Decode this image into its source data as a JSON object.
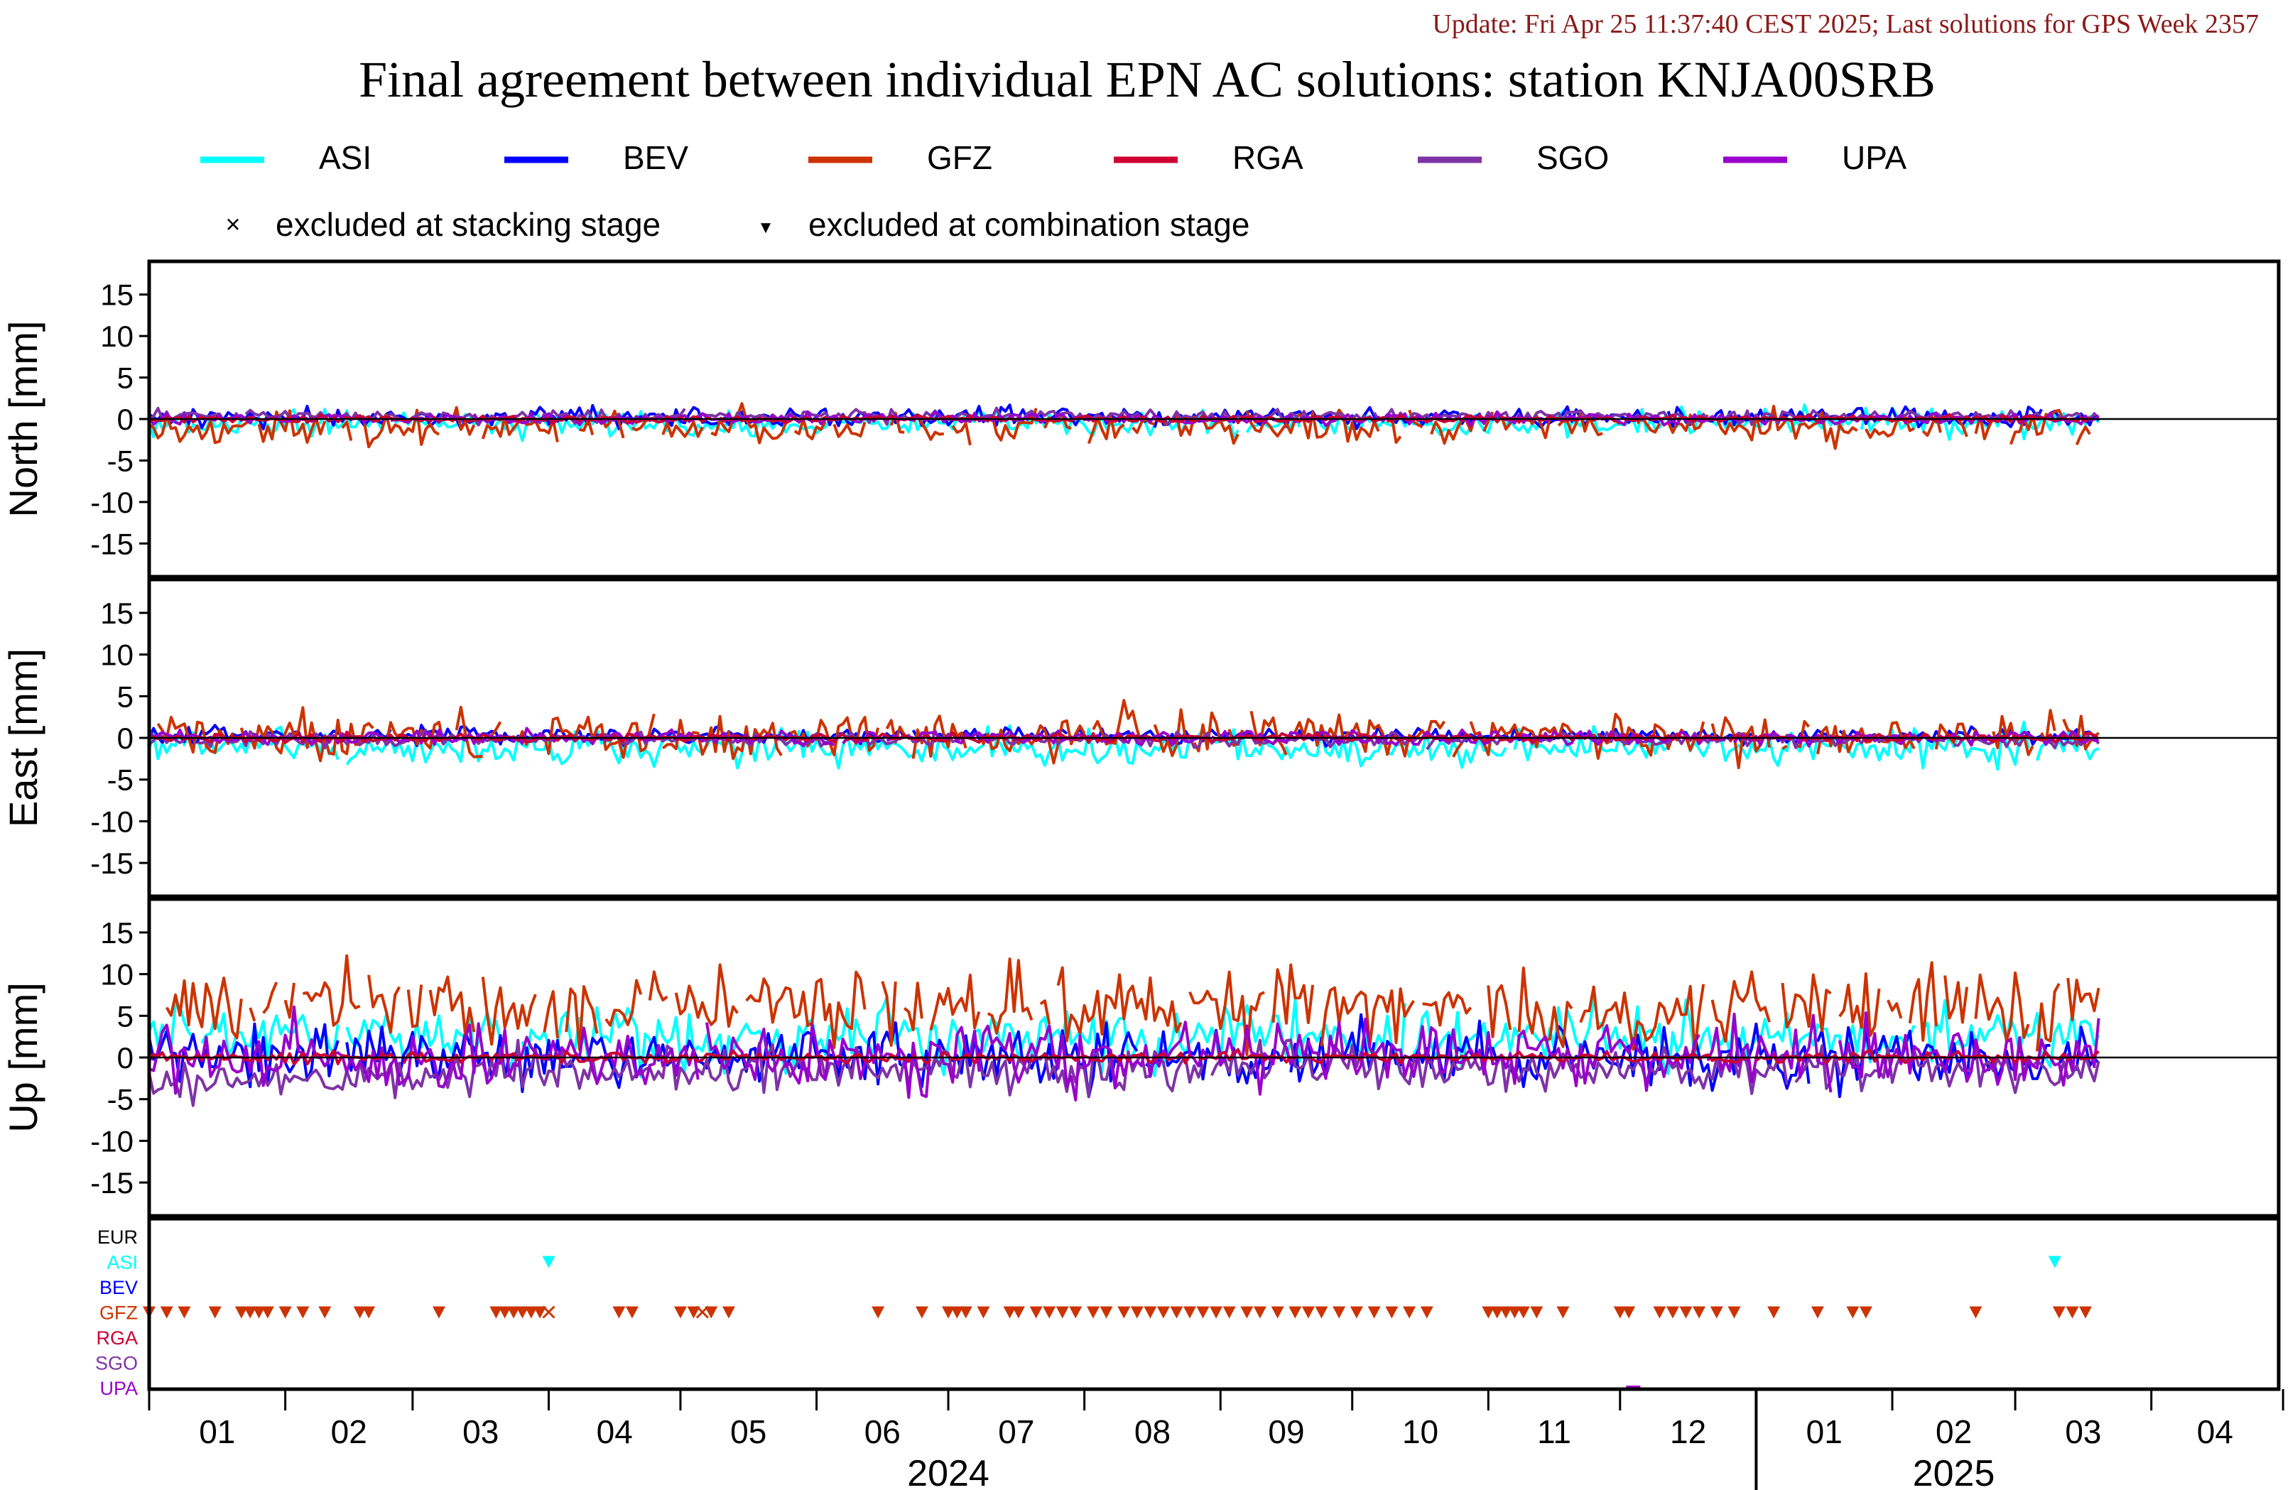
{
  "header": {
    "update_text": "Update: Fri Apr 25 11:37:40 CEST 2025; Last solutions for GPS Week 2357",
    "title": "Final agreement between individual EPN AC solutions: station KNJA00SRB"
  },
  "legend": {
    "series": [
      {
        "name": "ASI",
        "color": "#00ffff"
      },
      {
        "name": "BEV",
        "color": "#0000ff"
      },
      {
        "name": "GFZ",
        "color": "#cc3300"
      },
      {
        "name": "RGA",
        "color": "#cc0033"
      },
      {
        "name": "SGO",
        "color": "#7f33a6"
      },
      {
        "name": "UPA",
        "color": "#9900cc"
      }
    ],
    "markers": [
      {
        "symbol": "×",
        "label": "excluded at stacking stage"
      },
      {
        "symbol": "▼",
        "label": "excluded at combination stage"
      }
    ]
  },
  "chart_data": {
    "type": "line",
    "x_range": [
      "2024-01-01",
      "2025-04-30"
    ],
    "panels": [
      {
        "ylabel": "North [mm]",
        "ylim": [
          -19,
          19
        ],
        "yticks": [
          15,
          10,
          5,
          0,
          -5,
          -10,
          -15
        ],
        "profile": {
          "ASI": [
            -0.5,
            1.0
          ],
          "BEV": [
            0.2,
            0.7
          ],
          "GFZ": [
            -1.0,
            1.2
          ],
          "RGA": [
            0.0,
            0.25
          ],
          "SGO": [
            0.3,
            0.5
          ],
          "UPA": [
            0.0,
            0.4
          ]
        }
      },
      {
        "ylabel": "East [mm]",
        "ylim": [
          -19,
          19
        ],
        "yticks": [
          15,
          10,
          5,
          0,
          -5,
          -10,
          -15
        ],
        "profile": {
          "ASI": [
            -1.2,
            1.3
          ],
          "BEV": [
            0.2,
            0.6
          ],
          "GFZ": [
            0.3,
            1.8
          ],
          "RGA": [
            0.0,
            0.3
          ],
          "SGO": [
            -0.2,
            0.5
          ],
          "UPA": [
            0.0,
            0.5
          ]
        }
      },
      {
        "ylabel": "Up [mm]",
        "ylim": [
          -19,
          19
        ],
        "yticks": [
          15,
          10,
          5,
          0,
          -5,
          -10,
          -15
        ],
        "profile": {
          "ASI": [
            2.5,
            2.2
          ],
          "BEV": [
            0.0,
            2.2
          ],
          "GFZ": [
            6.0,
            2.8
          ],
          "RGA": [
            0.0,
            0.4
          ],
          "SGO": [
            -1.5,
            1.6
          ],
          "UPA": [
            0.2,
            2.5
          ]
        }
      }
    ],
    "exclusion_panel": {
      "rows": [
        {
          "name": "EUR",
          "color": "#000000"
        },
        {
          "name": "ASI",
          "color": "#00ffff"
        },
        {
          "name": "BEV",
          "color": "#0000ff"
        },
        {
          "name": "GFZ",
          "color": "#cc3300"
        },
        {
          "name": "RGA",
          "color": "#cc0033"
        },
        {
          "name": "SGO",
          "color": "#7f33a6"
        },
        {
          "name": "UPA",
          "color": "#9900cc"
        }
      ],
      "combination_excluded": {
        "ASI": [
          "2024-04-01",
          "2025-03-10"
        ],
        "GFZ": [
          "2024-01-01",
          "2024-01-05",
          "2024-01-09",
          "2024-01-16",
          "2024-01-22",
          "2024-01-24",
          "2024-01-26",
          "2024-01-28",
          "2024-02-01",
          "2024-02-05",
          "2024-02-10",
          "2024-02-18",
          "2024-02-20",
          "2024-03-07",
          "2024-03-20",
          "2024-03-22",
          "2024-03-24",
          "2024-03-26",
          "2024-03-28",
          "2024-03-30",
          "2024-04-17",
          "2024-04-20",
          "2024-05-01",
          "2024-05-04",
          "2024-05-08",
          "2024-05-12",
          "2024-06-15",
          "2024-06-25",
          "2024-07-01",
          "2024-07-03",
          "2024-07-05",
          "2024-07-09",
          "2024-07-15",
          "2024-07-17",
          "2024-07-21",
          "2024-07-24",
          "2024-07-27",
          "2024-07-30",
          "2024-08-03",
          "2024-08-06",
          "2024-08-10",
          "2024-08-13",
          "2024-08-16",
          "2024-08-19",
          "2024-08-22",
          "2024-08-25",
          "2024-08-28",
          "2024-08-31",
          "2024-09-03",
          "2024-09-07",
          "2024-09-10",
          "2024-09-14",
          "2024-09-18",
          "2024-09-21",
          "2024-09-24",
          "2024-09-28",
          "2024-10-02",
          "2024-10-06",
          "2024-10-10",
          "2024-10-14",
          "2024-10-18",
          "2024-11-01",
          "2024-11-03",
          "2024-11-05",
          "2024-11-07",
          "2024-11-09",
          "2024-11-12",
          "2024-11-18",
          "2024-12-01",
          "2024-12-03",
          "2024-12-10",
          "2024-12-13",
          "2024-12-16",
          "2024-12-19",
          "2024-12-23",
          "2024-12-27",
          "2025-01-05",
          "2025-01-15",
          "2025-01-23",
          "2025-01-26",
          "2025-02-20",
          "2025-03-11",
          "2025-03-14",
          "2025-03-17"
        ]
      },
      "stacking_excluded": {
        "GFZ": [
          "2024-04-01",
          "2024-05-06"
        ]
      },
      "other_marks": {
        "UPA": [
          "2024-12-04"
        ]
      }
    },
    "x_axis": {
      "month_labels": [
        "01",
        "02",
        "03",
        "04",
        "05",
        "06",
        "07",
        "08",
        "09",
        "10",
        "11",
        "12",
        "01",
        "02",
        "03",
        "04"
      ],
      "year_labels": [
        {
          "label": "2024",
          "center": "2024-07-01"
        },
        {
          "label": "2025",
          "center": "2025-02-15"
        }
      ],
      "year_boundary": "2025-01-01"
    }
  }
}
